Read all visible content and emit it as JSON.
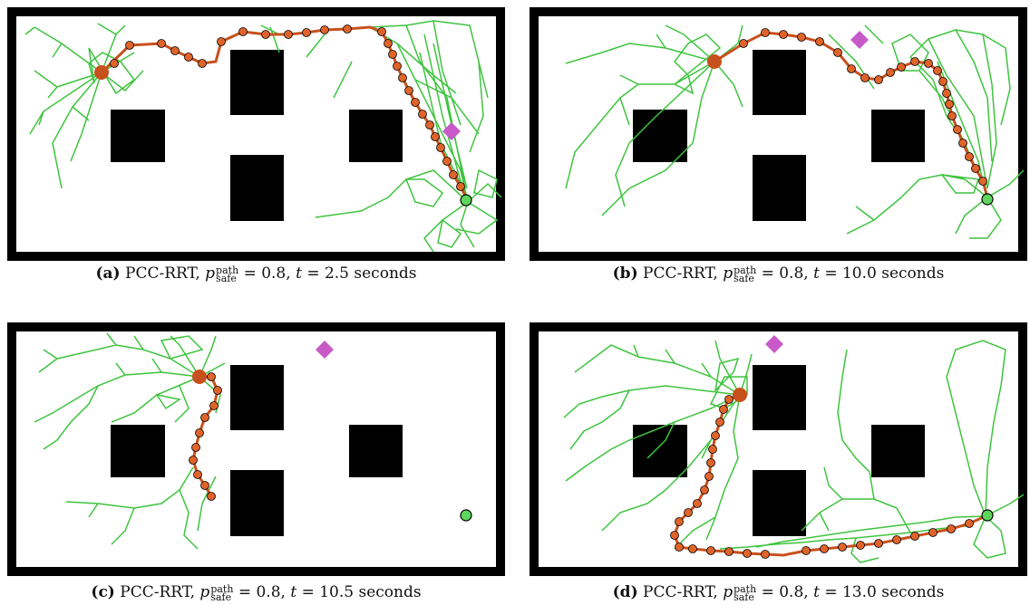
{
  "figure": {
    "panels": [
      {
        "id": "a",
        "label": "(a)",
        "method": "PCC-RRT,",
        "p_symbol": "p",
        "p_sup": "path",
        "p_sub": "safe",
        "equals_p": "= 0.8,",
        "t_symbol": "t",
        "equals_t": "= 2.5 seconds"
      },
      {
        "id": "b",
        "label": "(b)",
        "method": "PCC-RRT,",
        "p_symbol": "p",
        "p_sup": "path",
        "p_sub": "safe",
        "equals_p": "= 0.8,",
        "t_symbol": "t",
        "equals_t": "= 10.0 seconds"
      },
      {
        "id": "c",
        "label": "(c)",
        "method": "PCC-RRT,",
        "p_symbol": "p",
        "p_sup": "path",
        "p_sub": "safe",
        "equals_p": "= 0.8,",
        "t_symbol": "t",
        "equals_t": "= 10.5 seconds"
      },
      {
        "id": "d",
        "label": "(d)",
        "method": "PCC-RRT,",
        "p_symbol": "p",
        "p_sup": "path",
        "p_sub": "safe",
        "equals_p": "= 0.8,",
        "t_symbol": "t",
        "equals_t": "= 13.0 seconds"
      }
    ],
    "colors": {
      "border": "#000000",
      "obstacle": "#000000",
      "tree": "#3ec43e",
      "path": "#c8501c",
      "node": "#e0642a",
      "robot": "#c8501c",
      "goal": "#5cd65c",
      "dynamic_obstacle": "#c85ac8"
    }
  }
}
